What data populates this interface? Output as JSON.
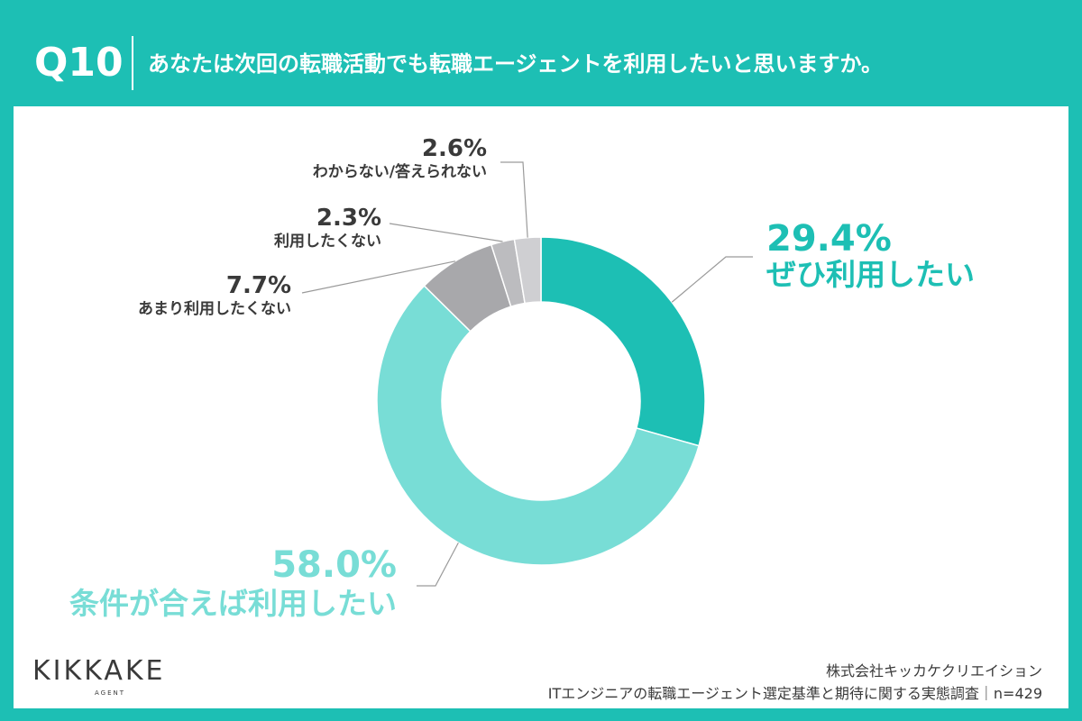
{
  "header": {
    "question_number": "Q10",
    "question_text": "あなたは次回の転職活動でも転職エージェントを利用したいと思いますか。"
  },
  "chart_data": {
    "type": "pie",
    "donut": true,
    "categories": [
      "ぜひ利用したい",
      "条件が合えば利用したい",
      "あまり利用したくない",
      "利用したくない",
      "わからない/答えられない"
    ],
    "values": [
      29.4,
      58.0,
      7.7,
      2.3,
      2.6
    ],
    "labels": [
      "29.4%",
      "58.0%",
      "7.7%",
      "2.3%",
      "2.6%"
    ],
    "colors": [
      "#1dbfb4",
      "#78ddd6",
      "#a8a8ab",
      "#bcbcbf",
      "#cfcfd2"
    ]
  },
  "footer": {
    "brand": "KIKKAKE",
    "brand_sub": "AGENT",
    "company": "株式会社キッカケクリエイション",
    "survey": "ITエンジニアの転職エージェント選定基準と期待に関する実態調査｜n=429"
  }
}
